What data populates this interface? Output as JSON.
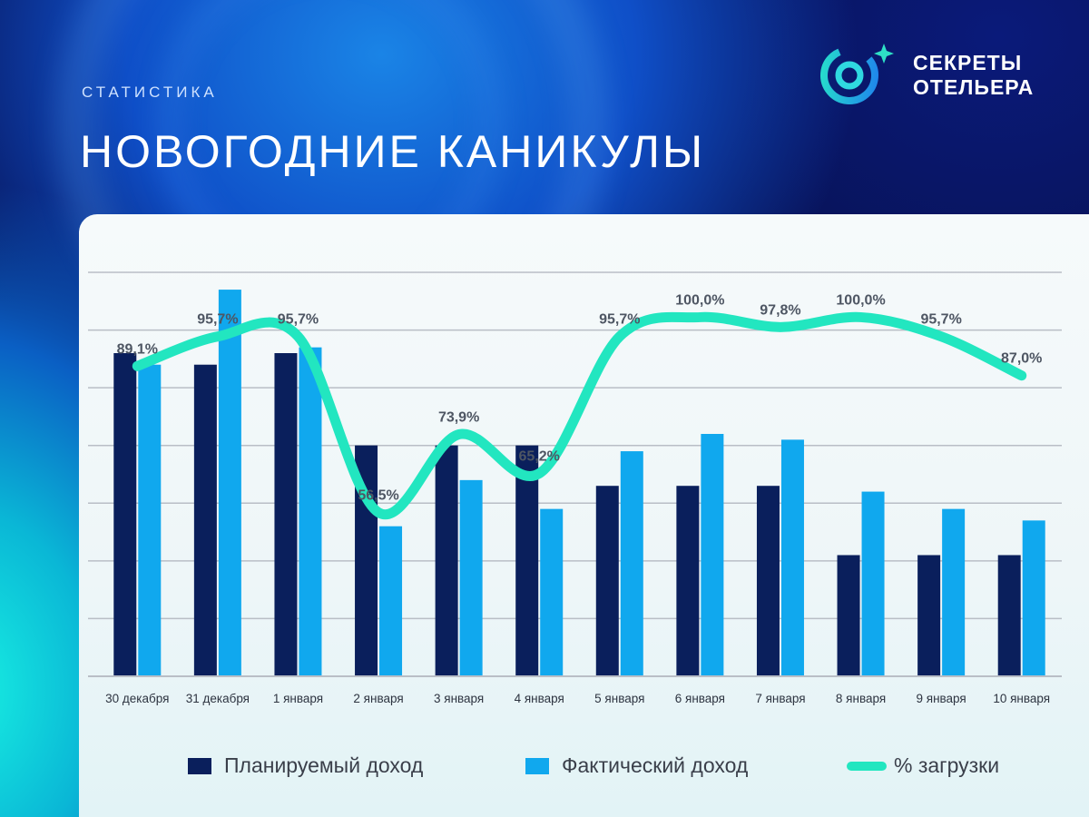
{
  "header": {
    "subtitle": "СТАТИСТИКА",
    "title": "НОВОГОДНИЕ КАНИКУЛЫ"
  },
  "logo": {
    "line1": "СЕКРЕТЫ",
    "line2": "ОТЕЛЬЕРА",
    "icon": "orbit-star-icon"
  },
  "colors": {
    "planned": "#0a1f5c",
    "actual": "#10a8ee",
    "load": "#22e6c0",
    "grid": "#b9bec6"
  },
  "chart_data": {
    "type": "bar",
    "title": "НОВОГОДНИЕ КАНИКУЛЫ",
    "categories": [
      "30 декабря",
      "31 декабря",
      "1 января",
      "2 января",
      "3 января",
      "4 января",
      "5 января",
      "6 января",
      "7 января",
      "8 января",
      "9 января",
      "10 января"
    ],
    "series": [
      {
        "name": "Планируемый доход",
        "type": "bar",
        "values": [
          5.6,
          5.4,
          5.6,
          4.0,
          4.0,
          4.0,
          3.3,
          3.3,
          3.3,
          2.1,
          2.1,
          2.1
        ]
      },
      {
        "name": "Фактический доход",
        "type": "bar",
        "values": [
          5.4,
          6.7,
          5.7,
          2.6,
          3.4,
          2.9,
          3.9,
          4.2,
          4.1,
          3.2,
          2.9,
          2.7
        ]
      },
      {
        "name": "% загрузки",
        "type": "line",
        "values": [
          89.1,
          95.7,
          95.7,
          56.5,
          73.9,
          65.2,
          95.7,
          100.0,
          97.8,
          100.0,
          95.7,
          87.0
        ],
        "labels": [
          "89,1%",
          "95,7%",
          "95,7%",
          "56,5%",
          "73,9%",
          "65,2%",
          "95,7%",
          "100,0%",
          "97,8%",
          "100,0%",
          "95,7%",
          "87,0%"
        ]
      }
    ],
    "ylim": [
      0,
      7
    ],
    "line_ylim": [
      20,
      110
    ],
    "grid": true,
    "legend": "bottom"
  }
}
